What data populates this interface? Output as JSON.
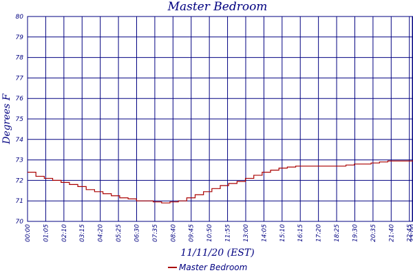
{
  "chart_data": {
    "type": "line",
    "title": "Master Bedroom",
    "xlabel": "11/11/20 (EST)",
    "ylabel": "Degrees F",
    "ylim": [
      70,
      80
    ],
    "yticks": [
      "70",
      "71",
      "72",
      "73",
      "74",
      "75",
      "76",
      "77",
      "78",
      "79",
      "80"
    ],
    "xticks": [
      "00:00",
      "01:05",
      "02:10",
      "03:15",
      "04:20",
      "05:25",
      "06:30",
      "07:35",
      "08:40",
      "09:45",
      "10:50",
      "11:55",
      "13:00",
      "14:05",
      "15:10",
      "16:15",
      "17:20",
      "18:25",
      "19:30",
      "20:35",
      "21:40",
      "22:45",
      "23:00"
    ],
    "grid": true,
    "legend_position": "bottom",
    "colors": {
      "grid": "#000080",
      "series": "#aa0000",
      "text": "#000080"
    },
    "series": [
      {
        "name": "Master Bedroom",
        "x_minutes": [
          0,
          30,
          60,
          90,
          120,
          150,
          180,
          210,
          240,
          270,
          300,
          330,
          360,
          390,
          420,
          450,
          470,
          480,
          510,
          540,
          570,
          600,
          630,
          660,
          690,
          720,
          750,
          780,
          810,
          840,
          870,
          900,
          930,
          960,
          990,
          1020,
          1050,
          1080,
          1110,
          1140,
          1170,
          1200,
          1230,
          1260,
          1290,
          1320,
          1350,
          1380
        ],
        "values": [
          72.4,
          72.2,
          72.1,
          72.0,
          71.9,
          71.8,
          71.7,
          71.55,
          71.45,
          71.35,
          71.25,
          71.15,
          71.1,
          71.0,
          71.0,
          70.95,
          70.95,
          70.9,
          70.95,
          71.0,
          71.15,
          71.3,
          71.45,
          71.6,
          71.75,
          71.85,
          71.95,
          72.1,
          72.25,
          72.4,
          72.5,
          72.6,
          72.65,
          72.7,
          72.7,
          72.7,
          72.7,
          72.7,
          72.7,
          72.75,
          72.8,
          72.8,
          72.85,
          72.9,
          72.95,
          72.95,
          72.95,
          72.95
        ]
      }
    ]
  }
}
